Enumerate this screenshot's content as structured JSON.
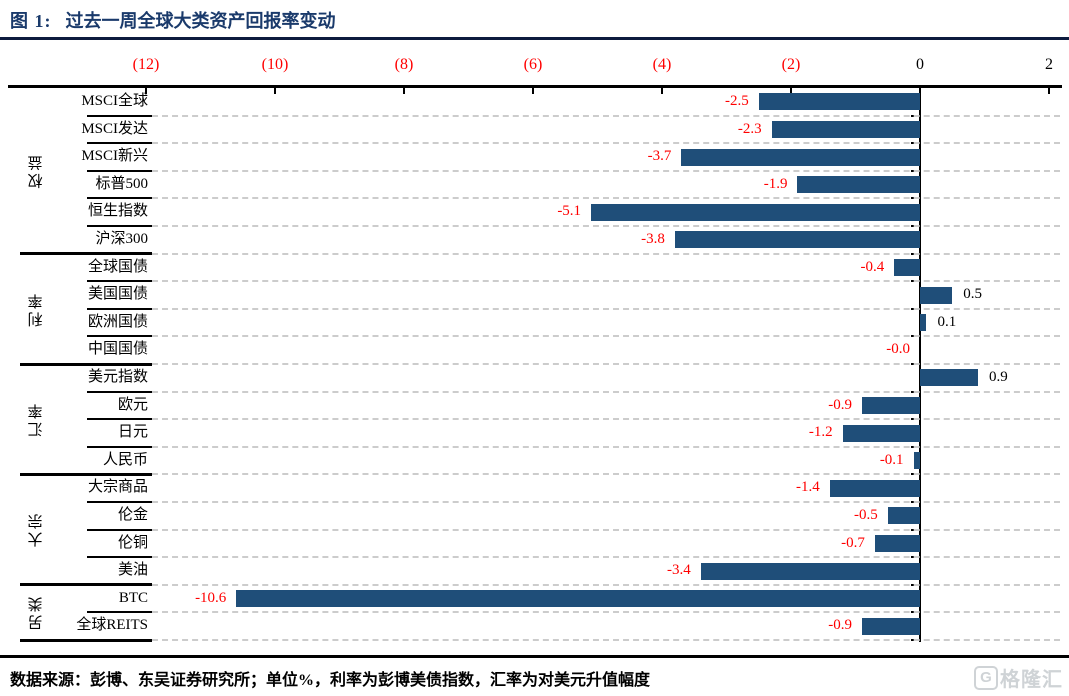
{
  "header": {
    "figure_label": "图 1:",
    "title": "过去一周全球大类资产回报率变动"
  },
  "chart_data": {
    "type": "bar",
    "orientation": "horizontal",
    "unit": "%",
    "xlim": [
      -12,
      2
    ],
    "grid": "dashed-horizontal",
    "x_ticks": [
      {
        "label": "(12)",
        "value": -12
      },
      {
        "label": "(10)",
        "value": -10
      },
      {
        "label": "(8)",
        "value": -8
      },
      {
        "label": "(6)",
        "value": -6
      },
      {
        "label": "(4)",
        "value": -4
      },
      {
        "label": "(2)",
        "value": -2
      },
      {
        "label": "0",
        "value": 0
      },
      {
        "label": "2",
        "value": 2
      }
    ],
    "bar_color": "#1F4E79",
    "negative_value_color": "#FF0000",
    "positive_value_color": "#000000",
    "gridline_color": "#CCCCCC",
    "negative_axis_label_color": "#FF0000",
    "groups": [
      {
        "name": "权益",
        "items": [
          {
            "label": "MSCI全球",
            "value": -2.5,
            "value_label": "-2.5"
          },
          {
            "label": "MSCI发达",
            "value": -2.3,
            "value_label": "-2.3"
          },
          {
            "label": "MSCI新兴",
            "value": -3.7,
            "value_label": "-3.7"
          },
          {
            "label": "标普500",
            "value": -1.9,
            "value_label": "-1.9"
          },
          {
            "label": "恒生指数",
            "value": -5.1,
            "value_label": "-5.1"
          },
          {
            "label": "沪深300",
            "value": -3.8,
            "value_label": "-3.8"
          }
        ]
      },
      {
        "name": "利率",
        "items": [
          {
            "label": "全球国债",
            "value": -0.4,
            "value_label": "-0.4"
          },
          {
            "label": "美国国债",
            "value": 0.5,
            "value_label": "0.5"
          },
          {
            "label": "欧洲国债",
            "value": 0.1,
            "value_label": "0.1"
          },
          {
            "label": "中国国债",
            "value": 0,
            "value_label": "-0.0"
          }
        ]
      },
      {
        "name": "汇率",
        "items": [
          {
            "label": "美元指数",
            "value": 0.9,
            "value_label": "0.9"
          },
          {
            "label": "欧元",
            "value": -0.9,
            "value_label": "-0.9"
          },
          {
            "label": "日元",
            "value": -1.2,
            "value_label": "-1.2"
          },
          {
            "label": "人民币",
            "value": -0.1,
            "value_label": "-0.1"
          }
        ]
      },
      {
        "name": "大宗",
        "items": [
          {
            "label": "大宗商品",
            "value": -1.4,
            "value_label": "-1.4"
          },
          {
            "label": "伦金",
            "value": -0.5,
            "value_label": "-0.5"
          },
          {
            "label": "伦铜",
            "value": -0.7,
            "value_label": "-0.7"
          },
          {
            "label": "美油",
            "value": -3.4,
            "value_label": "-3.4"
          }
        ]
      },
      {
        "name": "另类",
        "items": [
          {
            "label": "BTC",
            "value": -10.6,
            "value_label": "-10.6"
          },
          {
            "label": "全球REITS",
            "value": -0.9,
            "value_label": "-0.9"
          }
        ]
      }
    ]
  },
  "footer": {
    "source": "数据来源：彭博、东吴证券研究所；单位%，利率为彭博美债指数，汇率为对美元升值幅度",
    "logo_letter": "G",
    "logo_text": "格隆汇"
  }
}
